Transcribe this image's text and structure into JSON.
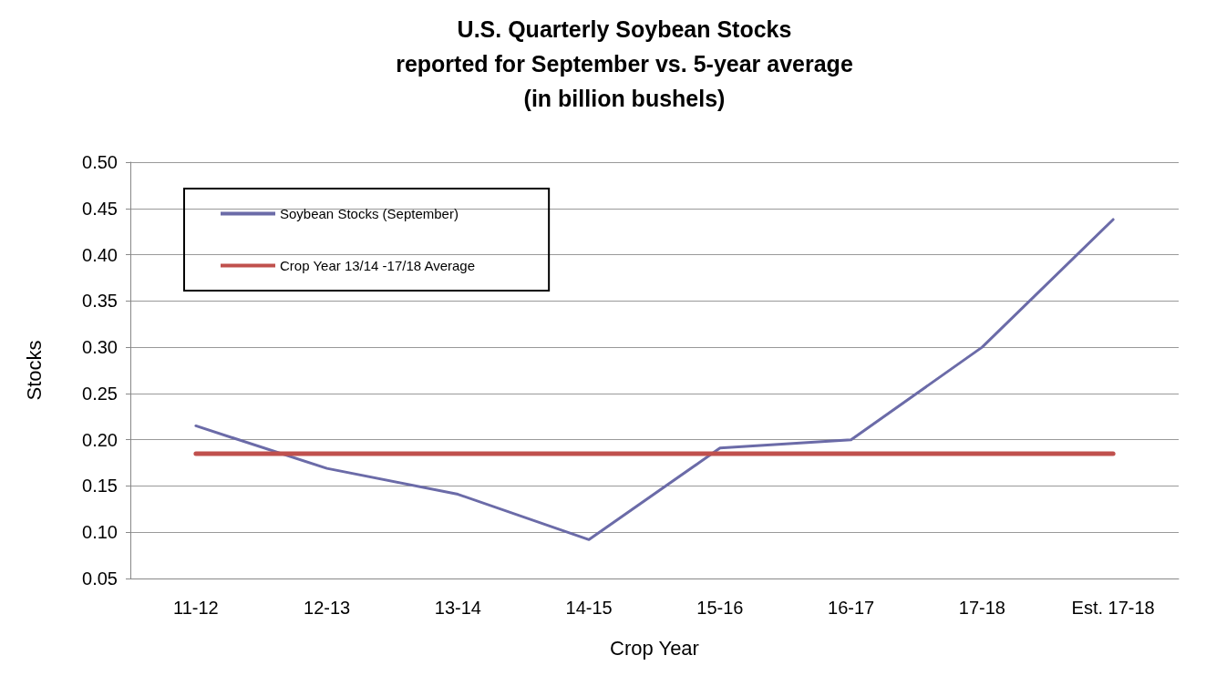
{
  "chart_data": {
    "type": "line",
    "title": "U.S. Quarterly Soybean Stocks\nreported for September vs. 5-year average\n(in billion bushels)",
    "xlabel": "Crop Year",
    "ylabel": "Stocks",
    "categories": [
      "11-12",
      "12-13",
      "13-14",
      "14-15",
      "15-16",
      "16-17",
      "17-18",
      "Est. 17-18"
    ],
    "series": [
      {
        "name": "Soybean Stocks (September)",
        "color": "#6b6ba8",
        "values": [
          0.215,
          0.169,
          0.141,
          0.092,
          0.191,
          0.2,
          0.3,
          0.438
        ]
      },
      {
        "name": "Crop Year 13/14 -17/18 Average",
        "color": "#c0504d",
        "values": [
          0.185,
          0.185,
          0.185,
          0.185,
          0.185,
          0.185,
          0.185,
          0.185
        ]
      }
    ],
    "ylim": [
      0.05,
      0.5
    ],
    "yticks": [
      {
        "value": 0.05,
        "label": "0.05"
      },
      {
        "value": 0.1,
        "label": "0.10"
      },
      {
        "value": 0.15,
        "label": "0.15"
      },
      {
        "value": 0.2,
        "label": "0.20"
      },
      {
        "value": 0.25,
        "label": "0.25"
      },
      {
        "value": 0.3,
        "label": "0.30"
      },
      {
        "value": 0.35,
        "label": "0.35"
      },
      {
        "value": 0.4,
        "label": "0.40"
      },
      {
        "value": 0.45,
        "label": "0.45"
      },
      {
        "value": 0.5,
        "label": "0.50"
      }
    ],
    "grid": "y",
    "legend": "top left",
    "marker": "none",
    "line_style": "solid"
  }
}
